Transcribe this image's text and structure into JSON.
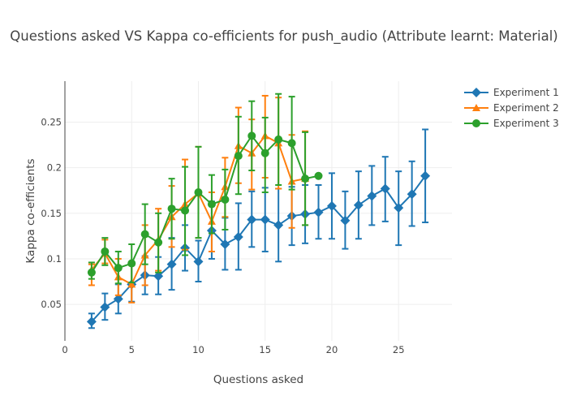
{
  "chart_data": {
    "type": "line",
    "title": "Questions asked VS Kappa co-efficients for push_audio (Attribute learnt: Material)",
    "xlabel": "Questions asked",
    "ylabel": "Kappa co-efficients",
    "xlim": [
      0,
      29
    ],
    "ylim": [
      0.01,
      0.295
    ],
    "x_ticks": [
      0,
      5,
      10,
      15,
      20,
      25
    ],
    "x_tick_labels": [
      "0",
      "5",
      "10",
      "15",
      "20",
      "25"
    ],
    "y_ticks": [
      0.05,
      0.1,
      0.15,
      0.2,
      0.25
    ],
    "y_tick_labels": [
      "0.05",
      "0.1",
      "0.15",
      "0.2",
      "0.25"
    ],
    "grid": true,
    "legend_position": "top-right",
    "series": [
      {
        "name": "Experiment 1",
        "color": "#1f77b4",
        "marker": "diamond",
        "x": [
          2,
          3,
          4,
          5,
          6,
          7,
          8,
          9,
          10,
          11,
          12,
          13,
          14,
          15,
          16,
          17,
          18,
          19,
          20,
          21,
          22,
          23,
          24,
          25,
          26,
          27
        ],
        "y": [
          0.031,
          0.047,
          0.056,
          0.072,
          0.082,
          0.081,
          0.094,
          0.112,
          0.097,
          0.131,
          0.116,
          0.124,
          0.143,
          0.143,
          0.137,
          0.147,
          0.149,
          0.151,
          0.158,
          0.142,
          0.159,
          0.169,
          0.177,
          0.156,
          0.171,
          0.191
        ],
        "err_low": [
          0.024,
          0.033,
          0.04,
          0.053,
          0.061,
          0.061,
          0.066,
          0.087,
          0.075,
          0.1,
          0.088,
          0.088,
          0.113,
          0.108,
          0.097,
          0.115,
          0.117,
          0.122,
          0.122,
          0.111,
          0.122,
          0.137,
          0.141,
          0.115,
          0.136,
          0.14
        ],
        "err_high": [
          0.04,
          0.062,
          0.072,
          0.093,
          0.103,
          0.102,
          0.123,
          0.137,
          0.12,
          0.163,
          0.145,
          0.161,
          0.174,
          0.178,
          0.177,
          0.179,
          0.181,
          0.181,
          0.194,
          0.174,
          0.196,
          0.202,
          0.212,
          0.196,
          0.207,
          0.242
        ]
      },
      {
        "name": "Experiment 2",
        "color": "#ff7f0e",
        "marker": "triangle-up",
        "x": [
          2,
          3,
          4,
          5,
          6,
          7,
          8,
          9,
          10,
          11,
          12,
          13,
          14,
          15,
          16,
          17,
          18
        ],
        "y": [
          0.088,
          0.106,
          0.08,
          0.072,
          0.104,
          0.121,
          0.146,
          0.16,
          0.172,
          0.141,
          0.179,
          0.224,
          0.216,
          0.235,
          0.227,
          0.185,
          0.188
        ],
        "err_low": [
          0.071,
          0.095,
          0.06,
          0.052,
          0.071,
          0.087,
          0.113,
          0.11,
          0.123,
          0.108,
          0.146,
          0.183,
          0.176,
          0.189,
          0.177,
          0.134,
          0.137
        ],
        "err_high": [
          0.094,
          0.121,
          0.1,
          0.093,
          0.137,
          0.155,
          0.18,
          0.209,
          0.223,
          0.173,
          0.211,
          0.266,
          0.253,
          0.279,
          0.277,
          0.236,
          0.24
        ]
      },
      {
        "name": "Experiment 3",
        "color": "#2ca02c",
        "marker": "circle",
        "x": [
          2,
          3,
          4,
          5,
          6,
          7,
          8,
          9,
          10,
          11,
          12,
          13,
          14,
          15,
          16,
          17,
          18,
          19
        ],
        "y": [
          0.085,
          0.108,
          0.09,
          0.095,
          0.127,
          0.118,
          0.155,
          0.153,
          0.173,
          0.16,
          0.165,
          0.213,
          0.235,
          0.216,
          0.231,
          0.227,
          0.188,
          0.191
        ],
        "err_low": [
          0.078,
          0.093,
          0.073,
          0.074,
          0.094,
          0.085,
          0.122,
          0.104,
          0.123,
          0.128,
          0.132,
          0.171,
          0.197,
          0.173,
          0.181,
          0.176,
          0.137,
          0.191
        ],
        "err_high": [
          0.096,
          0.123,
          0.108,
          0.116,
          0.16,
          0.15,
          0.188,
          0.201,
          0.223,
          0.192,
          0.198,
          0.256,
          0.273,
          0.255,
          0.281,
          0.278,
          0.239,
          0.191
        ]
      }
    ]
  }
}
